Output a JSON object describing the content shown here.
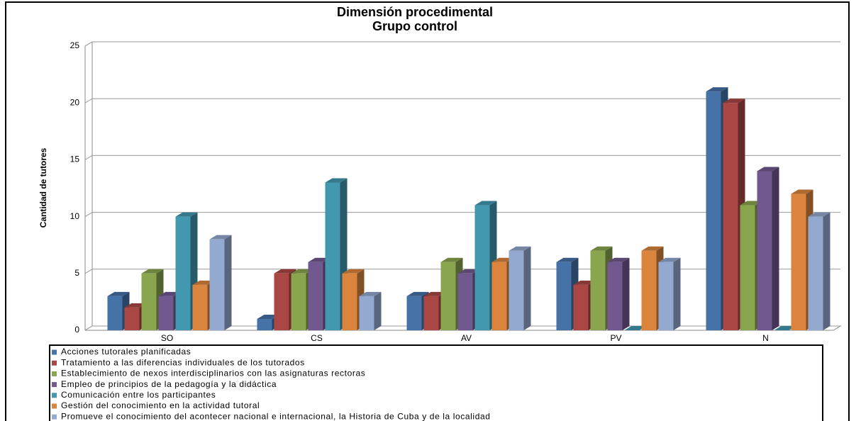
{
  "chart_data": {
    "type": "bar3d",
    "title": [
      "Dimensión procedimental",
      "Grupo control"
    ],
    "ylabel": "Cantidad de tutores",
    "categories": [
      "SO",
      "CS",
      "AV",
      "PV",
      "N"
    ],
    "series": [
      {
        "name": "Acciones tutorales planificadas",
        "color": "#4572a7",
        "values": [
          3,
          1,
          3,
          6,
          21
        ]
      },
      {
        "name": "Tratamiento  a las diferencias individuales de los tutorados",
        "color": "#aa4643",
        "values": [
          2,
          5,
          3,
          4,
          20
        ]
      },
      {
        "name": "Establecimiento de nexos interdisciplinarios con las asignaturas rectoras",
        "color": "#89a54e",
        "values": [
          5,
          5,
          6,
          7,
          11
        ]
      },
      {
        "name": "Empleo de principios de la pedagogía y la didáctica",
        "color": "#71588f",
        "values": [
          3,
          6,
          5,
          6,
          14
        ]
      },
      {
        "name": "Comunicación entre los participantes",
        "color": "#4198af",
        "values": [
          10,
          13,
          11,
          0,
          0
        ]
      },
      {
        "name": "Gestión del conocimiento en la actividad tutoral",
        "color": "#db843d",
        "values": [
          4,
          5,
          6,
          7,
          12
        ]
      },
      {
        "name": "Promueve el conocimiento del acontecer nacional e internacional,  la Historia de Cuba y de la localidad",
        "color": "#93a9cf",
        "values": [
          8,
          3,
          7,
          6,
          10
        ]
      }
    ],
    "ylim": [
      0,
      25
    ],
    "yticks": [
      0,
      5,
      10,
      15,
      20,
      25
    ],
    "grid": true,
    "legend": "bottom"
  }
}
